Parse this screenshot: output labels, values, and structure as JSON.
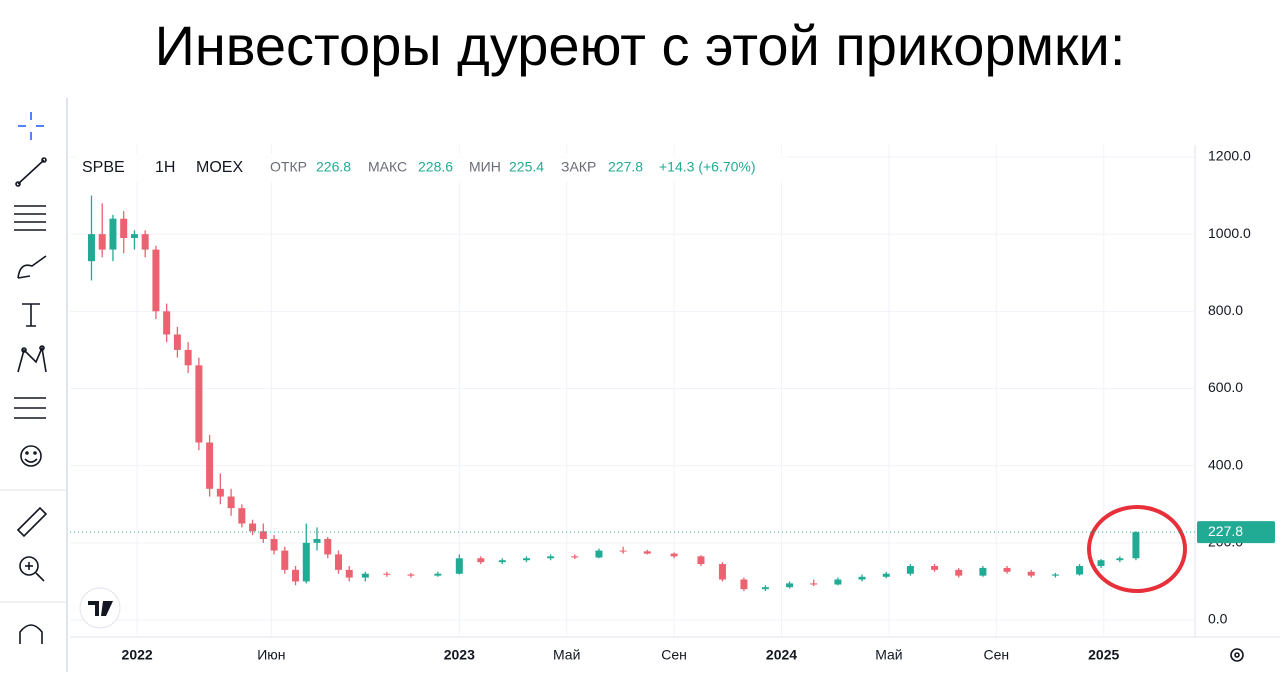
{
  "title": "Инвесторы дуреют с этой прикормки:",
  "chart_data": {
    "type": "candlestick",
    "ticker": "SPBE",
    "interval": "1H",
    "exchange": "MOEX",
    "ohlc_labels": {
      "open": "ОТКР",
      "high": "МАКС",
      "low": "МИН",
      "close": "ЗАКР"
    },
    "ohlc": {
      "open": 226.8,
      "high": 228.6,
      "low": 225.4,
      "close": 227.8
    },
    "change": "+14.3 (+6.70%)",
    "up_color": "#22ab94",
    "down_color": "#ec6270",
    "x": [
      -1.7,
      -1.3,
      -0.9,
      -0.5,
      -0.1,
      0.3,
      0.7,
      1.1,
      1.5,
      1.9,
      2.3,
      2.7,
      3.1,
      3.5,
      3.9,
      4.3,
      4.7,
      5.1,
      5.5,
      5.9,
      6.3,
      6.7,
      7.1,
      7.5,
      7.9,
      8.5,
      9.3,
      10.2,
      11.2,
      12.0,
      12.8,
      13.6,
      14.5,
      15.4,
      16.3,
      17.2,
      18.1,
      19.0,
      20.0,
      21.0,
      21.8,
      22.6,
      23.4,
      24.3,
      25.2,
      26.1,
      27.0,
      27.9,
      28.8,
      29.7,
      30.6,
      31.5,
      32.4,
      33.3,
      34.2,
      35.1,
      35.9,
      36.6,
      37.2
    ],
    "open": [
      930,
      1000,
      960,
      1040,
      990,
      1000,
      960,
      800,
      740,
      700,
      660,
      460,
      340,
      320,
      290,
      250,
      230,
      210,
      180,
      130,
      100,
      200,
      210,
      170,
      130,
      110,
      120,
      118,
      115,
      120,
      160,
      150,
      155,
      160,
      165,
      162,
      180,
      178,
      172,
      165,
      145,
      105,
      80,
      85,
      95,
      92,
      105,
      112,
      120,
      140,
      130,
      115,
      135,
      125,
      115,
      118,
      140,
      155,
      160
    ],
    "high": [
      1100,
      1080,
      1050,
      1060,
      1010,
      1010,
      970,
      820,
      760,
      720,
      680,
      480,
      380,
      340,
      300,
      260,
      250,
      220,
      190,
      140,
      250,
      240,
      215,
      180,
      140,
      125,
      125,
      122,
      125,
      170,
      165,
      160,
      165,
      170,
      170,
      185,
      190,
      182,
      175,
      168,
      150,
      110,
      90,
      100,
      105,
      110,
      118,
      125,
      145,
      145,
      135,
      140,
      140,
      130,
      122,
      145,
      158,
      165,
      230
    ],
    "low": [
      880,
      940,
      930,
      950,
      960,
      940,
      780,
      720,
      680,
      640,
      440,
      320,
      300,
      270,
      240,
      220,
      200,
      170,
      120,
      90,
      95,
      180,
      160,
      120,
      100,
      100,
      112,
      110,
      112,
      118,
      145,
      145,
      150,
      155,
      158,
      160,
      172,
      170,
      160,
      140,
      100,
      75,
      75,
      82,
      88,
      90,
      100,
      108,
      115,
      125,
      110,
      112,
      120,
      110,
      110,
      115,
      135,
      150,
      155
    ],
    "close": [
      1000,
      960,
      1040,
      990,
      1000,
      960,
      800,
      740,
      700,
      660,
      460,
      340,
      320,
      290,
      250,
      230,
      210,
      180,
      130,
      100,
      200,
      210,
      170,
      130,
      110,
      120,
      118,
      115,
      120,
      160,
      150,
      155,
      160,
      165,
      162,
      180,
      178,
      172,
      165,
      145,
      105,
      80,
      85,
      95,
      92,
      105,
      112,
      120,
      140,
      130,
      115,
      135,
      125,
      115,
      118,
      140,
      155,
      160,
      227.8
    ],
    "xlim": [
      -2.5,
      39.4
    ],
    "xticks": [
      {
        "value": 0,
        "label": "2022"
      },
      {
        "value": 5,
        "label": "Июн"
      },
      {
        "value": 12,
        "label": "2023"
      },
      {
        "value": 16,
        "label": "Май"
      },
      {
        "value": 20,
        "label": "Сен"
      },
      {
        "value": 24,
        "label": "2024"
      },
      {
        "value": 28,
        "label": "Май"
      },
      {
        "value": 32,
        "label": "Сен"
      },
      {
        "value": 36,
        "label": "2025"
      }
    ],
    "ylim": [
      -44,
      1231
    ],
    "yticks": [
      {
        "value": 0,
        "label": "0.0"
      },
      {
        "value": 200,
        "label": "200.0"
      },
      {
        "value": 400,
        "label": "400.0"
      },
      {
        "value": 600,
        "label": "600.0"
      },
      {
        "value": 800,
        "label": "800.0"
      },
      {
        "value": 1000,
        "label": "1000.0"
      },
      {
        "value": 1200,
        "label": "1200.0"
      }
    ],
    "grid": true
  }
}
